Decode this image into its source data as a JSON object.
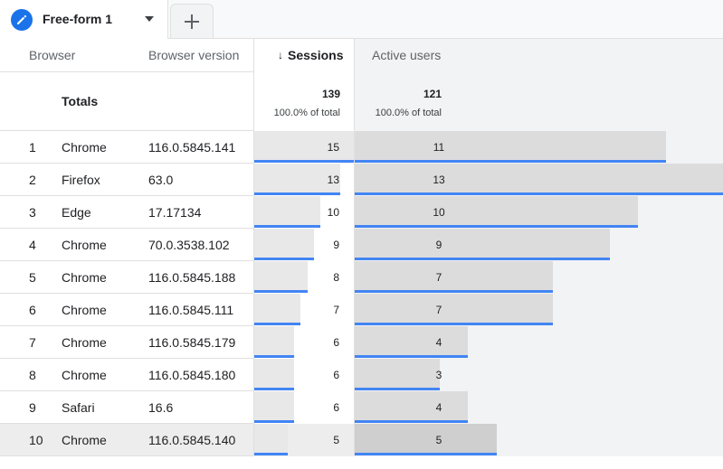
{
  "tab": {
    "label": "Free-form 1",
    "icon": "pencil-icon",
    "add_icon": "plus-icon"
  },
  "columns": {
    "browser": "Browser",
    "version": "Browser version",
    "sessions": "Sessions",
    "sort_arrow": "↓",
    "users": "Active users"
  },
  "totals": {
    "label": "Totals",
    "sessions": "139",
    "sessions_pct": "100.0% of total",
    "users": "121",
    "users_pct": "100.0% of total"
  },
  "rows": [
    {
      "index": "1",
      "browser": "Chrome",
      "version": "116.0.5845.141",
      "sessions": "15",
      "users": "11"
    },
    {
      "index": "2",
      "browser": "Firefox",
      "version": "63.0",
      "sessions": "13",
      "users": "13"
    },
    {
      "index": "3",
      "browser": "Edge",
      "version": "17.17134",
      "sessions": "10",
      "users": "10"
    },
    {
      "index": "4",
      "browser": "Chrome",
      "version": "70.0.3538.102",
      "sessions": "9",
      "users": "9"
    },
    {
      "index": "5",
      "browser": "Chrome",
      "version": "116.0.5845.188",
      "sessions": "8",
      "users": "7"
    },
    {
      "index": "6",
      "browser": "Chrome",
      "version": "116.0.5845.111",
      "sessions": "7",
      "users": "7"
    },
    {
      "index": "7",
      "browser": "Chrome",
      "version": "116.0.5845.179",
      "sessions": "6",
      "users": "4"
    },
    {
      "index": "8",
      "browser": "Chrome",
      "version": "116.0.5845.180",
      "sessions": "6",
      "users": "3"
    },
    {
      "index": "9",
      "browser": "Safari",
      "version": "16.6",
      "sessions": "6",
      "users": "4"
    },
    {
      "index": "10",
      "browser": "Chrome",
      "version": "116.0.5845.140",
      "sessions": "5",
      "users": "5"
    }
  ],
  "colors": {
    "accent": "#1a73e8",
    "bar_line": "#4285f4"
  }
}
